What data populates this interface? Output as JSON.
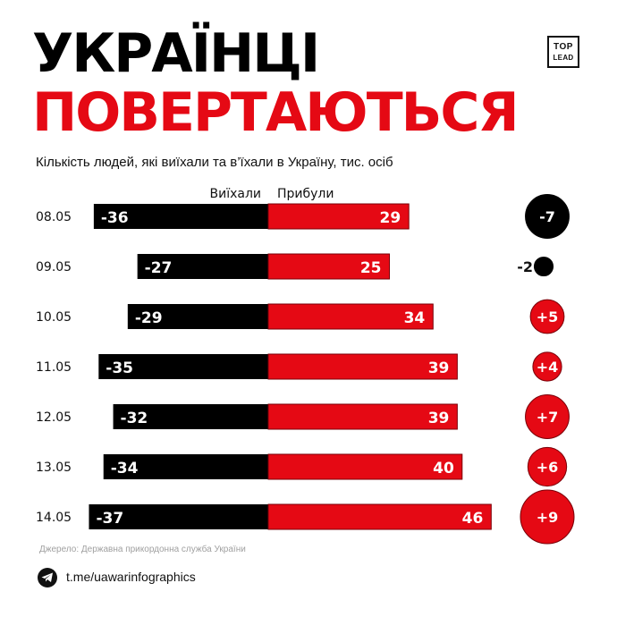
{
  "header": {
    "title_line1": "УКРАЇНЦІ",
    "title_line2": "ПОВЕРТАЮТЬСЯ",
    "subtitle": "Кількість людей, які виїхали та в’їхали в Україну, тис. осіб",
    "logo_top": "TOP",
    "logo_bottom": "LEAD"
  },
  "footer": {
    "source": "Джерело: Державна прикордонна служба України",
    "telegram_handle": "t.me/uawarinfographics",
    "telegram_icon": "telegram-icon"
  },
  "colors": {
    "out_bar": "#000000",
    "in_bar": "#e50914",
    "bar_outline": "#7a0008",
    "title_accent": "#e50914",
    "net_negative": "#000000",
    "net_positive": "#e50914"
  },
  "chart_data": {
    "type": "bar",
    "orientation": "horizontal-diverging",
    "categories": [
      "08.05",
      "09.05",
      "10.05",
      "11.05",
      "12.05",
      "13.05",
      "14.05"
    ],
    "series": [
      {
        "name": "Виїхали",
        "values": [
          -36,
          -27,
          -29,
          -35,
          -32,
          -34,
          -37
        ]
      },
      {
        "name": "Прибули",
        "values": [
          29,
          25,
          34,
          39,
          39,
          40,
          46
        ]
      }
    ],
    "net": {
      "values": [
        -7,
        -2,
        5,
        4,
        7,
        6,
        9
      ],
      "labels": [
        "-7",
        "-2",
        "+5",
        "+4",
        "+7",
        "+6",
        "+9"
      ]
    },
    "legend_position": "top-center",
    "grid": false
  }
}
